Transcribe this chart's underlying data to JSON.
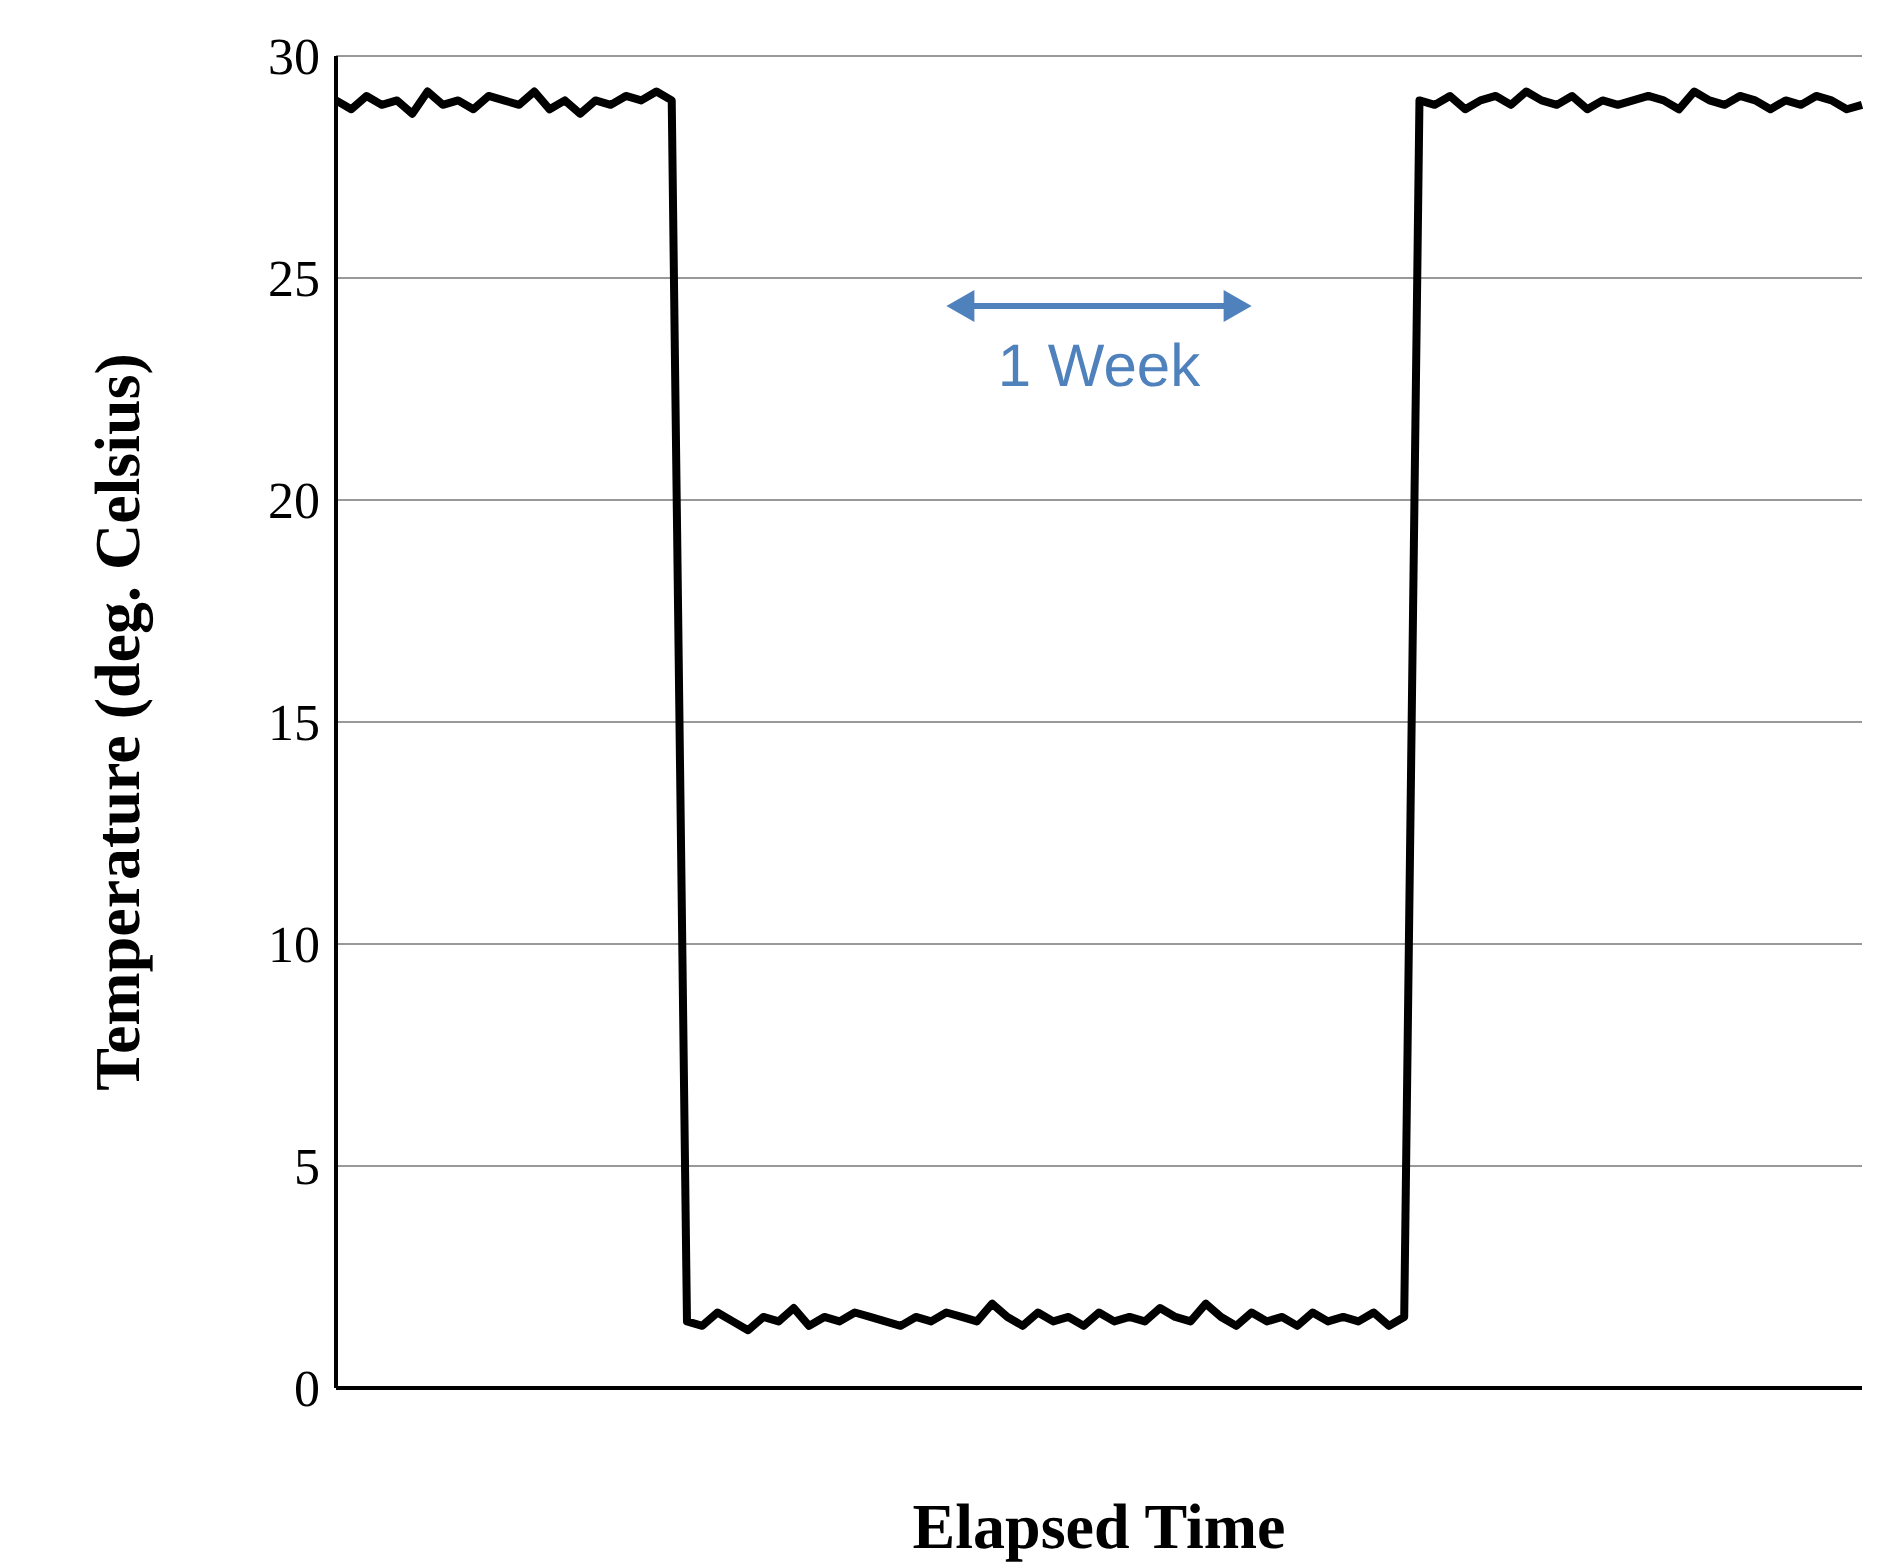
{
  "chart_data": {
    "type": "line",
    "xlabel": "Elapsed Time",
    "ylabel": "Temperature (deg. Celsius)",
    "categories": [
      null,
      null,
      null,
      null,
      null,
      null,
      null,
      null,
      null,
      null,
      null,
      null,
      null,
      null,
      null,
      null,
      null,
      null,
      null,
      null,
      null,
      null,
      null,
      null,
      null,
      null,
      null,
      null,
      null,
      null,
      null,
      null,
      null,
      null,
      null,
      null,
      null,
      null,
      null,
      null,
      null,
      null,
      null,
      null,
      null,
      null,
      null,
      null,
      null,
      null,
      null,
      null,
      null,
      null,
      null,
      null,
      null,
      null,
      null,
      null,
      null,
      null,
      null,
      null,
      null,
      null,
      null,
      null,
      null,
      null,
      null,
      null,
      null,
      null,
      null,
      null,
      null,
      null,
      null,
      null,
      null,
      null,
      null,
      null,
      null,
      null,
      null,
      null,
      null,
      null,
      null,
      null,
      null,
      null,
      null,
      null,
      null,
      null,
      null,
      null,
      null
    ],
    "series": [
      {
        "color": "#000000",
        "values": [
          29.0,
          28.8,
          29.1,
          28.9,
          29.0,
          28.7,
          29.2,
          28.9,
          29.0,
          28.8,
          29.1,
          29.0,
          28.9,
          29.2,
          28.8,
          29.0,
          28.7,
          29.0,
          28.9,
          29.1,
          29.0,
          29.2,
          29.0,
          1.5,
          1.4,
          1.7,
          1.5,
          1.3,
          1.6,
          1.5,
          1.8,
          1.4,
          1.6,
          1.5,
          1.7,
          1.6,
          1.5,
          1.4,
          1.6,
          1.5,
          1.7,
          1.6,
          1.5,
          1.9,
          1.6,
          1.4,
          1.7,
          1.5,
          1.6,
          1.4,
          1.7,
          1.5,
          1.6,
          1.5,
          1.8,
          1.6,
          1.5,
          1.9,
          1.6,
          1.4,
          1.7,
          1.5,
          1.6,
          1.4,
          1.7,
          1.5,
          1.6,
          1.5,
          1.7,
          1.4,
          1.6,
          29.0,
          28.9,
          29.1,
          28.8,
          29.0,
          29.1,
          28.9,
          29.2,
          29.0,
          28.9,
          29.1,
          28.8,
          29.0,
          28.9,
          29.0,
          29.1,
          29.0,
          28.8,
          29.2,
          29.0,
          28.9,
          29.1,
          29.0,
          28.8,
          29.0,
          28.9,
          29.1,
          29.0,
          28.8,
          28.9
        ]
      }
    ],
    "ylim": [
      0,
      30
    ],
    "yticks": [
      0,
      5,
      10,
      15,
      20,
      25,
      30
    ],
    "grid": "y",
    "legend": false,
    "marker": "none",
    "line_style": "solid",
    "annotations": [
      "1 Week"
    ]
  }
}
